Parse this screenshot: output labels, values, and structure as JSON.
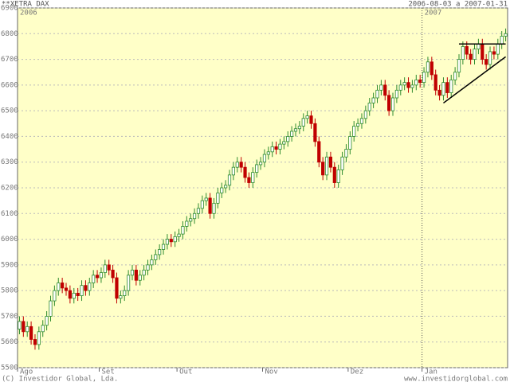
{
  "chart_data": {
    "type": "candlestick",
    "title": "**XETRA DAX",
    "date_range": "2006-08-03 a 2007-01-31",
    "year_labels": [
      "2006",
      "2007"
    ],
    "copyright": "(C) Investidor Global, Lda.",
    "website": "www.investidorglobal.com",
    "categories": [
      "Ago",
      null,
      null,
      null,
      null,
      null,
      null,
      null,
      null,
      null,
      null,
      null,
      null,
      null,
      null,
      null,
      null,
      null,
      null,
      null,
      null,
      "Set",
      null,
      null,
      null,
      null,
      null,
      null,
      null,
      null,
      null,
      null,
      null,
      null,
      null,
      null,
      null,
      null,
      null,
      null,
      null,
      "Out",
      null,
      null,
      null,
      null,
      null,
      null,
      null,
      null,
      null,
      null,
      null,
      null,
      null,
      null,
      null,
      null,
      null,
      null,
      null,
      null,
      null,
      "Nov",
      null,
      null,
      null,
      null,
      null,
      null,
      null,
      null,
      null,
      null,
      null,
      null,
      null,
      null,
      null,
      null,
      null,
      null,
      null,
      null,
      null,
      "Dez",
      null,
      null,
      null,
      null,
      null,
      null,
      null,
      null,
      null,
      null,
      null,
      null,
      null,
      null,
      null,
      null,
      null,
      null,
      "Jan",
      null,
      null,
      null,
      null,
      null,
      null,
      null,
      null,
      null,
      null,
      null,
      null,
      null,
      null,
      null,
      null,
      null,
      null,
      null,
      null,
      null
    ],
    "open": [
      5650,
      5680,
      5640,
      5660,
      5610,
      5590,
      5640,
      5665,
      5700,
      5760,
      5800,
      5830,
      5810,
      5800,
      5770,
      5790,
      5780,
      5820,
      5800,
      5830,
      5860,
      5850,
      5870,
      5900,
      5880,
      5850,
      5770,
      5780,
      5800,
      5860,
      5880,
      5840,
      5860,
      5880,
      5900,
      5920,
      5940,
      5960,
      5980,
      6000,
      5990,
      6010,
      6020,
      6050,
      6070,
      6080,
      6100,
      6120,
      6150,
      6160,
      6100,
      6140,
      6180,
      6200,
      6210,
      6250,
      6280,
      6300,
      6280,
      6240,
      6220,
      6260,
      6290,
      6300,
      6330,
      6340,
      6360,
      6350,
      6370,
      6380,
      6400,
      6420,
      6430,
      6440,
      6470,
      6480,
      6450,
      6380,
      6300,
      6250,
      6320,
      6280,
      6220,
      6270,
      6320,
      6350,
      6400,
      6440,
      6450,
      6470,
      6500,
      6530,
      6550,
      6580,
      6600,
      6560,
      6500,
      6550,
      6580,
      6600,
      6610,
      6590,
      6600,
      6620,
      6610,
      6650,
      6690,
      6640,
      6580,
      6560,
      6610,
      6570,
      6620,
      6650,
      6700,
      6750,
      6720,
      6700,
      6740,
      6760,
      6700,
      6680,
      6730,
      6720,
      6760,
      6790
    ],
    "high": [
      5700,
      5700,
      5680,
      5680,
      5630,
      5660,
      5685,
      5720,
      5780,
      5820,
      5850,
      5850,
      5830,
      5820,
      5810,
      5810,
      5840,
      5840,
      5850,
      5880,
      5880,
      5890,
      5920,
      5920,
      5900,
      5870,
      5800,
      5820,
      5880,
      5900,
      5900,
      5880,
      5900,
      5920,
      5940,
      5960,
      5980,
      6000,
      6020,
      6020,
      6030,
      6040,
      6070,
      6090,
      6100,
      6120,
      6140,
      6170,
      6180,
      6180,
      6160,
      6200,
      6220,
      6230,
      6270,
      6300,
      6320,
      6320,
      6300,
      6260,
      6280,
      6310,
      6320,
      6350,
      6360,
      6380,
      6380,
      6390,
      6400,
      6420,
      6440,
      6450,
      6460,
      6490,
      6500,
      6500,
      6470,
      6400,
      6320,
      6340,
      6340,
      6300,
      6290,
      6340,
      6370,
      6420,
      6460,
      6470,
      6490,
      6520,
      6550,
      6570,
      6600,
      6620,
      6620,
      6580,
      6570,
      6600,
      6620,
      6630,
      6630,
      6620,
      6640,
      6640,
      6670,
      6710,
      6710,
      6660,
      6600,
      6630,
      6630,
      6640,
      6670,
      6720,
      6770,
      6770,
      6740,
      6760,
      6780,
      6780,
      6720,
      6750,
      6750,
      6780,
      6810,
      6820
    ],
    "low": [
      5630,
      5620,
      5620,
      5590,
      5570,
      5570,
      5620,
      5645,
      5680,
      5740,
      5780,
      5790,
      5780,
      5750,
      5750,
      5760,
      5760,
      5780,
      5780,
      5810,
      5830,
      5830,
      5850,
      5860,
      5830,
      5750,
      5750,
      5760,
      5780,
      5840,
      5820,
      5820,
      5840,
      5860,
      5880,
      5900,
      5920,
      5940,
      5960,
      5970,
      5970,
      5990,
      6000,
      6030,
      6050,
      6060,
      6080,
      6100,
      6130,
      6080,
      6080,
      6120,
      6160,
      6180,
      6190,
      6230,
      6260,
      6260,
      6220,
      6200,
      6200,
      6240,
      6270,
      6280,
      6310,
      6320,
      6330,
      6330,
      6350,
      6360,
      6380,
      6400,
      6410,
      6420,
      6450,
      6430,
      6360,
      6280,
      6230,
      6230,
      6260,
      6200,
      6200,
      6250,
      6300,
      6330,
      6380,
      6420,
      6430,
      6450,
      6480,
      6510,
      6530,
      6560,
      6540,
      6480,
      6480,
      6530,
      6560,
      6580,
      6570,
      6570,
      6580,
      6590,
      6590,
      6630,
      6620,
      6560,
      6540,
      6540,
      6550,
      6550,
      6600,
      6630,
      6680,
      6700,
      6680,
      6680,
      6720,
      6680,
      6660,
      6660,
      6700,
      6700,
      6740,
      6770
    ],
    "close": [
      5680,
      5640,
      5660,
      5610,
      5590,
      5640,
      5665,
      5700,
      5760,
      5800,
      5830,
      5810,
      5800,
      5770,
      5790,
      5780,
      5820,
      5800,
      5830,
      5860,
      5850,
      5870,
      5900,
      5880,
      5850,
      5770,
      5780,
      5800,
      5860,
      5880,
      5840,
      5860,
      5880,
      5900,
      5920,
      5940,
      5960,
      5980,
      6000,
      5990,
      6010,
      6020,
      6050,
      6070,
      6080,
      6100,
      6120,
      6150,
      6160,
      6100,
      6140,
      6180,
      6200,
      6210,
      6250,
      6280,
      6300,
      6280,
      6240,
      6220,
      6260,
      6290,
      6300,
      6330,
      6340,
      6360,
      6350,
      6370,
      6380,
      6400,
      6420,
      6430,
      6440,
      6470,
      6480,
      6450,
      6380,
      6300,
      6250,
      6320,
      6280,
      6220,
      6270,
      6320,
      6350,
      6400,
      6440,
      6450,
      6470,
      6500,
      6530,
      6550,
      6580,
      6600,
      6560,
      6500,
      6550,
      6580,
      6600,
      6610,
      6590,
      6600,
      6620,
      6610,
      6650,
      6690,
      6640,
      6580,
      6560,
      6610,
      6570,
      6620,
      6650,
      6700,
      6750,
      6720,
      6700,
      6740,
      6760,
      6700,
      6680,
      6730,
      6720,
      6760,
      6790,
      6800
    ],
    "up_color": "#2e8b2e",
    "down_color": "#c00000",
    "trendlines": [
      {
        "x": [
          113,
          125
        ],
        "y": [
          6760,
          6760
        ]
      },
      {
        "x": [
          109,
          125
        ],
        "y": [
          6530,
          6710
        ]
      }
    ],
    "ylim": [
      5500,
      6900
    ],
    "yticks": [
      5500,
      5600,
      5700,
      5800,
      5900,
      6000,
      6100,
      6200,
      6300,
      6400,
      6500,
      6600,
      6700,
      6800,
      6900
    ],
    "grid": true
  }
}
